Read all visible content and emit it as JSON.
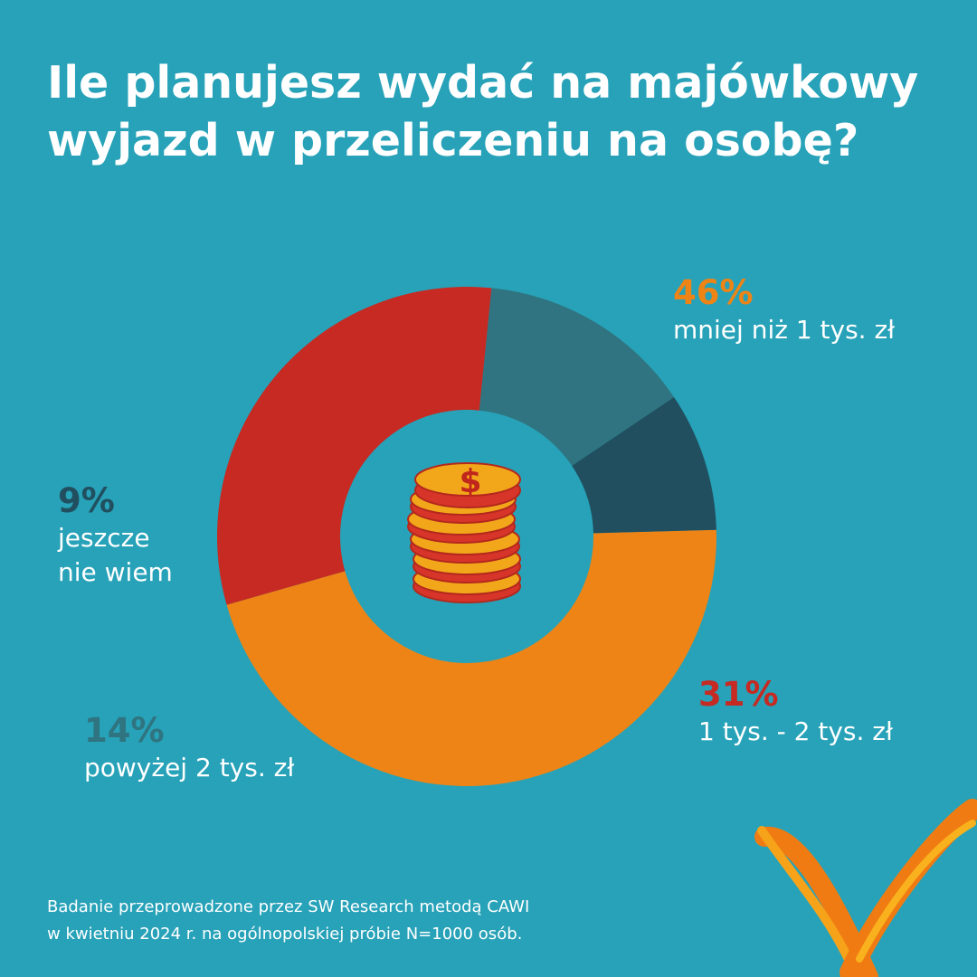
{
  "title_lines": [
    "Ile planujesz wydać na majówkowy",
    "wyjazd w przeliczeniu na osobę?"
  ],
  "chart_data": {
    "type": "pie",
    "donut": true,
    "title": "Ile planujesz wydać na majówkowy wyjazd w przeliczeniu na osobę?",
    "slices": [
      {
        "label": "mniej niż 1 tys. zł",
        "pct_label": "46%",
        "value": 46,
        "color": "#ee8416"
      },
      {
        "label": "1 tys. - 2 tys. zł",
        "pct_label": "31%",
        "value": 31,
        "color": "#c62a22"
      },
      {
        "label": "powyżej 2 tys. zł",
        "pct_label": "14%",
        "value": 14,
        "color": "#2f7480"
      },
      {
        "label": "jeszcze nie wiem",
        "label_lines": [
          "jeszcze",
          "nie wiem"
        ],
        "pct_label": "9%",
        "value": 9,
        "color": "#214f5f"
      }
    ]
  },
  "center_icon": "coin-stack-icon",
  "footnote_lines": [
    "Badanie przeprowadzone przez SW Research metodą CAWI",
    "w kwietniu 2024 r. na ogólnopolskiej próbie N=1000 osób."
  ],
  "colors": {
    "background": "#27a2b8",
    "brand_ribbon": "#f07b12",
    "text": "#ffffff"
  },
  "decoration": "brand-ribbon-logo"
}
